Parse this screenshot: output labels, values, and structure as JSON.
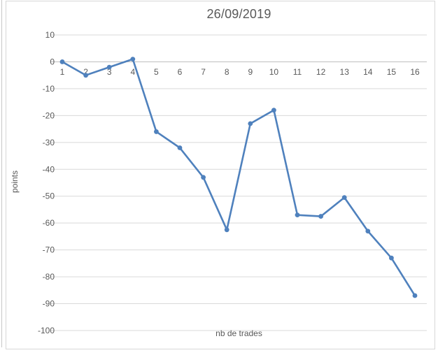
{
  "chart_data": {
    "type": "line",
    "title": "26/09/2019",
    "xlabel": "nb de trades",
    "ylabel": "points",
    "categories": [
      "1",
      "2",
      "3",
      "4",
      "5",
      "6",
      "7",
      "8",
      "9",
      "10",
      "11",
      "12",
      "13",
      "14",
      "15",
      "16"
    ],
    "series": [
      {
        "name": "points",
        "values": [
          0,
          -5,
          -2,
          1,
          -26,
          -32,
          -43,
          -62.5,
          -23,
          -18,
          -57,
          -57.5,
          -50.5,
          -63,
          -73,
          -87
        ]
      }
    ],
    "y_ticks": [
      10,
      0,
      -10,
      -20,
      -30,
      -40,
      -50,
      -60,
      -70,
      -80,
      -90,
      -100
    ],
    "ylim": [
      -100,
      10
    ],
    "grid": true,
    "legend_position": "none",
    "colors": {
      "series_line": "#4f81bd",
      "marker_fill": "#4f81bd",
      "gridline": "#d9d9d9",
      "zero_axis": "#bfbfbf",
      "text": "#595959"
    }
  }
}
